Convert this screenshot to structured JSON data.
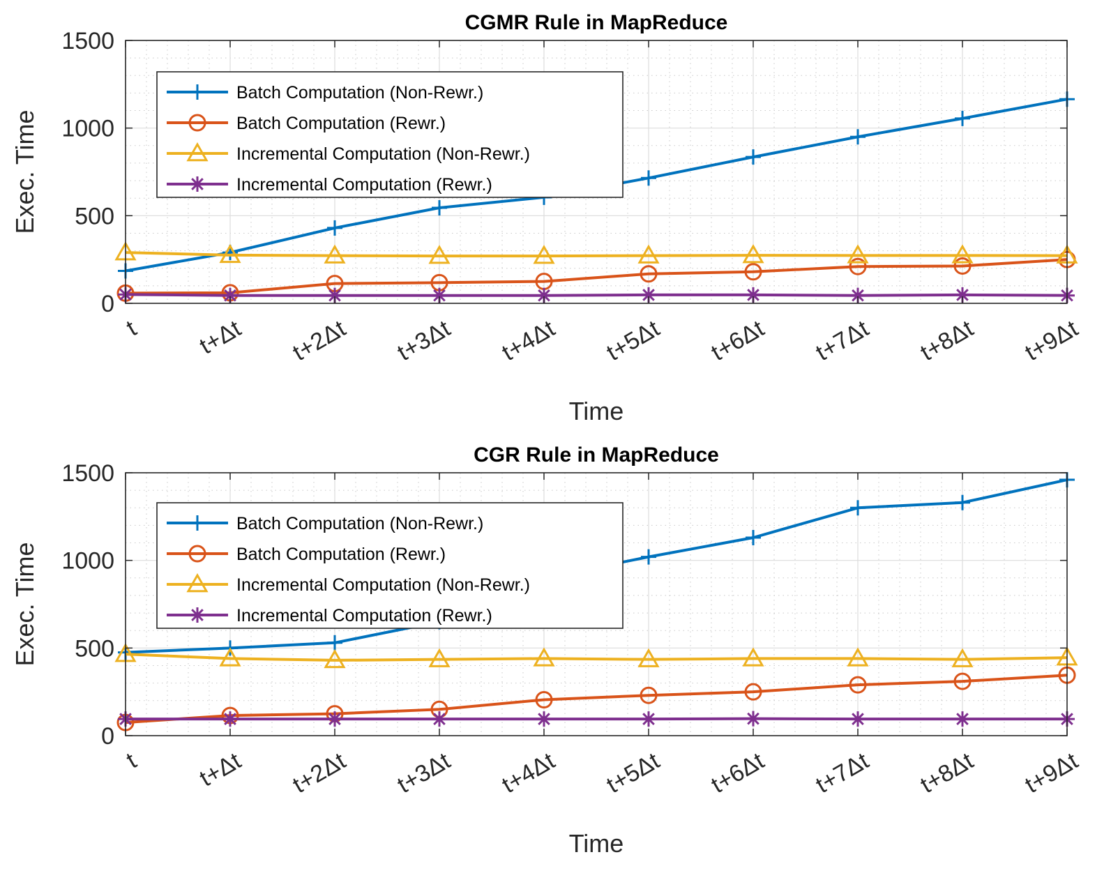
{
  "chart_data": [
    {
      "type": "line",
      "title": "CGMR Rule in MapReduce",
      "xlabel": "Time",
      "ylabel": "Exec. Time",
      "categories": [
        "t",
        "t+Δt",
        "t+2Δt",
        "t+3Δt",
        "t+4Δt",
        "t+5Δt",
        "t+6Δt",
        "t+7Δt",
        "t+8Δt",
        "t+9Δt"
      ],
      "ylim": [
        0,
        1500
      ],
      "yticks": [
        0,
        500,
        1000,
        1500
      ],
      "grid": true,
      "legend_position": "top-left",
      "series": [
        {
          "name": "Batch Computation (Non-Rewr.)",
          "marker": "plus",
          "color": "#0072BD",
          "values": [
            185,
            290,
            430,
            545,
            605,
            715,
            835,
            950,
            1055,
            1165
          ]
        },
        {
          "name": "Batch Computation (Rewr.)",
          "marker": "circle",
          "color": "#D95319",
          "values": [
            58,
            60,
            113,
            118,
            125,
            168,
            180,
            210,
            213,
            250
          ]
        },
        {
          "name": "Incremental Computation (Non-Rewr.)",
          "marker": "triangle",
          "color": "#EDB120",
          "values": [
            290,
            275,
            272,
            270,
            270,
            272,
            274,
            273,
            273,
            272
          ]
        },
        {
          "name": "Incremental Computation (Rewr.)",
          "marker": "asterisk",
          "color": "#7E2F8E",
          "values": [
            50,
            45,
            45,
            45,
            45,
            48,
            48,
            45,
            48,
            45
          ]
        }
      ]
    },
    {
      "type": "line",
      "title": "CGR Rule in MapReduce",
      "xlabel": "Time",
      "ylabel": "Exec. Time",
      "categories": [
        "t",
        "t+Δt",
        "t+2Δt",
        "t+3Δt",
        "t+4Δt",
        "t+5Δt",
        "t+6Δt",
        "t+7Δt",
        "t+8Δt",
        "t+9Δt"
      ],
      "ylim": [
        0,
        1500
      ],
      "yticks": [
        0,
        500,
        1000,
        1500
      ],
      "grid": true,
      "legend_position": "top-left",
      "series": [
        {
          "name": "Batch Computation (Non-Rewr.)",
          "marker": "plus",
          "color": "#0072BD",
          "values": [
            475,
            500,
            530,
            650,
            900,
            1020,
            1130,
            1300,
            1330,
            1460
          ]
        },
        {
          "name": "Batch Computation (Rewr.)",
          "marker": "circle",
          "color": "#D95319",
          "values": [
            75,
            115,
            125,
            150,
            205,
            230,
            250,
            290,
            310,
            345
          ]
        },
        {
          "name": "Incremental Computation (Non-Rewr.)",
          "marker": "triangle",
          "color": "#EDB120",
          "values": [
            465,
            440,
            430,
            435,
            440,
            435,
            440,
            440,
            435,
            445
          ]
        },
        {
          "name": "Incremental Computation (Rewr.)",
          "marker": "asterisk",
          "color": "#7E2F8E",
          "values": [
            95,
            95,
            95,
            95,
            95,
            95,
            97,
            95,
            95,
            95
          ]
        }
      ]
    }
  ]
}
